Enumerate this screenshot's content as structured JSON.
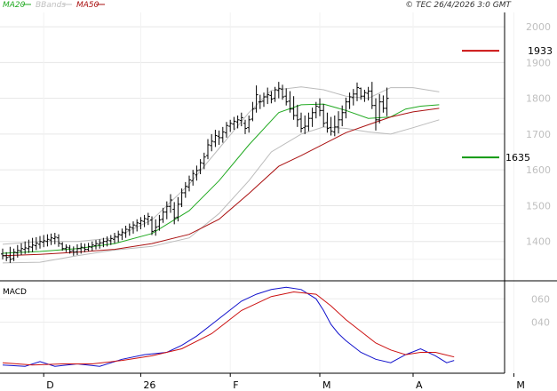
{
  "header": {
    "legend": [
      {
        "name": "MA20",
        "color": "#22aa22"
      },
      {
        "name": "BBands",
        "color": "#c0c0c0"
      },
      {
        "name": "MA50",
        "color": "#aa1111"
      }
    ],
    "copyright": "© TEC 26/4/2026 3:0 GMT"
  },
  "chart_data": [
    {
      "type": "line",
      "title": "",
      "ylim": [
        1290,
        2040
      ],
      "y_ticks": [
        "2000",
        "1900",
        "1800",
        "1700",
        "1600",
        "1500",
        "1400"
      ],
      "y_tick_values": [
        2000,
        1900,
        1800,
        1700,
        1600,
        1500,
        1400
      ],
      "x_ticks": [
        "D",
        "26",
        "F",
        "M",
        "A",
        "M"
      ],
      "x_tick_index": [
        11,
        37,
        61,
        85,
        110,
        137
      ],
      "grid": true,
      "levels": [
        {
          "label": "1933",
          "value": 1933,
          "color": "#cc1111"
        },
        {
          "label": "1635",
          "value": 1635,
          "color": "#119911"
        }
      ],
      "ohlc": [
        [
          1380,
          1365,
          1350,
          1360
        ],
        [
          1370,
          1360,
          1345,
          1355
        ],
        [
          1385,
          1357,
          1340,
          1350
        ],
        [
          1380,
          1352,
          1345,
          1370
        ],
        [
          1390,
          1368,
          1355,
          1375
        ],
        [
          1395,
          1374,
          1362,
          1380
        ],
        [
          1400,
          1378,
          1365,
          1382
        ],
        [
          1405,
          1380,
          1368,
          1385
        ],
        [
          1410,
          1384,
          1370,
          1390
        ],
        [
          1412,
          1388,
          1376,
          1395
        ],
        [
          1415,
          1392,
          1380,
          1400
        ],
        [
          1418,
          1398,
          1384,
          1402
        ],
        [
          1420,
          1400,
          1386,
          1406
        ],
        [
          1422,
          1404,
          1390,
          1410
        ],
        [
          1424,
          1408,
          1392,
          1412
        ],
        [
          1420,
          1410,
          1385,
          1395
        ],
        [
          1398,
          1393,
          1374,
          1380
        ],
        [
          1392,
          1380,
          1370,
          1384
        ],
        [
          1390,
          1382,
          1366,
          1372
        ],
        [
          1386,
          1374,
          1360,
          1370
        ],
        [
          1392,
          1371,
          1362,
          1380
        ],
        [
          1396,
          1380,
          1366,
          1384
        ],
        [
          1394,
          1382,
          1370,
          1378
        ],
        [
          1396,
          1378,
          1372,
          1386
        ],
        [
          1400,
          1384,
          1374,
          1390
        ],
        [
          1404,
          1388,
          1378,
          1394
        ],
        [
          1406,
          1392,
          1380,
          1396
        ],
        [
          1410,
          1396,
          1384,
          1400
        ],
        [
          1414,
          1400,
          1386,
          1404
        ],
        [
          1418,
          1402,
          1390,
          1408
        ],
        [
          1424,
          1406,
          1394,
          1414
        ],
        [
          1430,
          1412,
          1398,
          1420
        ],
        [
          1436,
          1418,
          1404,
          1426
        ],
        [
          1444,
          1424,
          1410,
          1434
        ],
        [
          1450,
          1432,
          1416,
          1440
        ],
        [
          1456,
          1438,
          1422,
          1446
        ],
        [
          1462,
          1444,
          1428,
          1452
        ],
        [
          1468,
          1450,
          1434,
          1458
        ],
        [
          1474,
          1456,
          1440,
          1464
        ],
        [
          1480,
          1462,
          1446,
          1470
        ],
        [
          1470,
          1460,
          1418,
          1428
        ],
        [
          1462,
          1430,
          1416,
          1440
        ],
        [
          1474,
          1442,
          1430,
          1460
        ],
        [
          1494,
          1462,
          1452,
          1482
        ],
        [
          1512,
          1482,
          1462,
          1498
        ],
        [
          1532,
          1498,
          1480,
          1516
        ],
        [
          1510,
          1490,
          1448,
          1466
        ],
        [
          1524,
          1468,
          1456,
          1504
        ],
        [
          1548,
          1504,
          1496,
          1536
        ],
        [
          1566,
          1536,
          1522,
          1554
        ],
        [
          1584,
          1552,
          1540,
          1572
        ],
        [
          1600,
          1570,
          1556,
          1590
        ],
        [
          1612,
          1586,
          1570,
          1598
        ],
        [
          1630,
          1600,
          1588,
          1620
        ],
        [
          1648,
          1618,
          1602,
          1636
        ],
        [
          1686,
          1640,
          1630,
          1670
        ],
        [
          1700,
          1668,
          1652,
          1680
        ],
        [
          1712,
          1678,
          1664,
          1696
        ],
        [
          1710,
          1694,
          1670,
          1690
        ],
        [
          1720,
          1690,
          1676,
          1706
        ],
        [
          1734,
          1704,
          1690,
          1724
        ],
        [
          1740,
          1722,
          1706,
          1730
        ],
        [
          1748,
          1728,
          1712,
          1736
        ],
        [
          1752,
          1734,
          1716,
          1740
        ],
        [
          1760,
          1738,
          1722,
          1746
        ],
        [
          1740,
          1730,
          1700,
          1716
        ],
        [
          1752,
          1718,
          1704,
          1740
        ],
        [
          1790,
          1742,
          1736,
          1770
        ],
        [
          1836,
          1772,
          1760,
          1810
        ],
        [
          1810,
          1790,
          1770,
          1790
        ],
        [
          1816,
          1792,
          1776,
          1804
        ],
        [
          1830,
          1804,
          1784,
          1810
        ],
        [
          1820,
          1808,
          1786,
          1798
        ],
        [
          1832,
          1800,
          1790,
          1824
        ],
        [
          1846,
          1822,
          1800,
          1828
        ],
        [
          1838,
          1826,
          1796,
          1804
        ],
        [
          1828,
          1806,
          1780,
          1790
        ],
        [
          1820,
          1792,
          1760,
          1770
        ],
        [
          1806,
          1770,
          1740,
          1752
        ],
        [
          1782,
          1752,
          1720,
          1740
        ],
        [
          1760,
          1742,
          1704,
          1716
        ],
        [
          1752,
          1718,
          1700,
          1722
        ],
        [
          1760,
          1722,
          1708,
          1744
        ],
        [
          1774,
          1744,
          1720,
          1760
        ],
        [
          1790,
          1760,
          1744,
          1778
        ],
        [
          1800,
          1776,
          1750,
          1766
        ],
        [
          1784,
          1766,
          1720,
          1730
        ],
        [
          1760,
          1732,
          1704,
          1716
        ],
        [
          1748,
          1718,
          1696,
          1708
        ],
        [
          1752,
          1706,
          1694,
          1720
        ],
        [
          1764,
          1720,
          1702,
          1740
        ],
        [
          1780,
          1740,
          1722,
          1760
        ],
        [
          1802,
          1760,
          1744,
          1790
        ],
        [
          1816,
          1790,
          1770,
          1804
        ],
        [
          1826,
          1802,
          1780,
          1812
        ],
        [
          1844,
          1812,
          1792,
          1830
        ],
        [
          1830,
          1828,
          1796,
          1806
        ],
        [
          1824,
          1806,
          1790,
          1816
        ],
        [
          1832,
          1814,
          1794,
          1820
        ],
        [
          1846,
          1820,
          1770,
          1780
        ],
        [
          1800,
          1780,
          1710,
          1740
        ],
        [
          1812,
          1740,
          1730,
          1790
        ],
        [
          1808,
          1790,
          1760,
          1772
        ],
        [
          1830,
          1772,
          1750,
          1800
        ]
      ],
      "series": [
        {
          "name": "MA20",
          "color": "#22aa22",
          "points": [
            [
              0,
              1367
            ],
            [
              10,
              1372
            ],
            [
              20,
              1380
            ],
            [
              30,
              1394
            ],
            [
              40,
              1422
            ],
            [
              50,
              1486
            ],
            [
              58,
              1570
            ],
            [
              66,
              1670
            ],
            [
              74,
              1760
            ],
            [
              80,
              1782
            ],
            [
              86,
              1784
            ],
            [
              92,
              1766
            ],
            [
              98,
              1744
            ],
            [
              104,
              1748
            ],
            [
              108,
              1770
            ],
            [
              112,
              1778
            ],
            [
              117,
              1782
            ]
          ]
        },
        {
          "name": "BBands",
          "color": "#bbbbbb",
          "points": [
            [
              0,
              1392
            ],
            [
              10,
              1400
            ],
            [
              20,
              1400
            ],
            [
              30,
              1410
            ],
            [
              40,
              1460
            ],
            [
              50,
              1560
            ],
            [
              58,
              1660
            ],
            [
              66,
              1760
            ],
            [
              72,
              1822
            ],
            [
              80,
              1832
            ],
            [
              86,
              1824
            ],
            [
              92,
              1806
            ],
            [
              98,
              1800
            ],
            [
              104,
              1830
            ],
            [
              110,
              1830
            ],
            [
              117,
              1818
            ]
          ]
        },
        {
          "name": "BBands",
          "color": "#bbbbbb",
          "points": [
            [
              0,
              1340
            ],
            [
              10,
              1342
            ],
            [
              20,
              1360
            ],
            [
              30,
              1376
            ],
            [
              40,
              1386
            ],
            [
              50,
              1410
            ],
            [
              58,
              1478
            ],
            [
              66,
              1570
            ],
            [
              72,
              1650
            ],
            [
              80,
              1700
            ],
            [
              86,
              1720
            ],
            [
              92,
              1716
            ],
            [
              98,
              1706
            ],
            [
              104,
              1700
            ],
            [
              110,
              1718
            ],
            [
              117,
              1740
            ]
          ]
        },
        {
          "name": "MA50",
          "color": "#aa1111",
          "points": [
            [
              0,
              1360
            ],
            [
              10,
              1364
            ],
            [
              20,
              1370
            ],
            [
              30,
              1378
            ],
            [
              40,
              1394
            ],
            [
              50,
              1420
            ],
            [
              58,
              1462
            ],
            [
              66,
              1534
            ],
            [
              74,
              1610
            ],
            [
              80,
              1640
            ],
            [
              86,
              1672
            ],
            [
              92,
              1704
            ],
            [
              98,
              1726
            ],
            [
              104,
              1748
            ],
            [
              110,
              1762
            ],
            [
              117,
              1772
            ]
          ]
        }
      ]
    },
    {
      "type": "line",
      "title": "MACD",
      "ylim": [
        -4,
        74
      ],
      "y_ticks": [
        "060",
        "040"
      ],
      "y_tick_values": [
        60,
        40
      ],
      "grid": true,
      "series": [
        {
          "name": "",
          "color": "#1111cc",
          "points": [
            [
              0,
              3
            ],
            [
              6,
              2
            ],
            [
              10,
              6
            ],
            [
              14,
              2
            ],
            [
              20,
              4
            ],
            [
              26,
              2
            ],
            [
              32,
              8
            ],
            [
              38,
              12
            ],
            [
              44,
              14
            ],
            [
              48,
              20
            ],
            [
              52,
              28
            ],
            [
              56,
              38
            ],
            [
              60,
              48
            ],
            [
              64,
              58
            ],
            [
              68,
              64
            ],
            [
              72,
              68
            ],
            [
              76,
              70
            ],
            [
              80,
              68
            ],
            [
              84,
              60
            ],
            [
              86,
              50
            ],
            [
              88,
              38
            ],
            [
              90,
              30
            ],
            [
              92,
              24
            ],
            [
              96,
              14
            ],
            [
              100,
              8
            ],
            [
              104,
              5
            ],
            [
              108,
              12
            ],
            [
              112,
              17
            ],
            [
              116,
              11
            ],
            [
              119,
              5
            ],
            [
              121,
              7
            ]
          ]
        },
        {
          "name": "",
          "color": "#cc1111",
          "points": [
            [
              0,
              5
            ],
            [
              8,
              3
            ],
            [
              16,
              4
            ],
            [
              24,
              4
            ],
            [
              32,
              7
            ],
            [
              40,
              11
            ],
            [
              48,
              17
            ],
            [
              56,
              30
            ],
            [
              64,
              50
            ],
            [
              72,
              62
            ],
            [
              78,
              66
            ],
            [
              84,
              64
            ],
            [
              88,
              54
            ],
            [
              92,
              42
            ],
            [
              96,
              32
            ],
            [
              100,
              22
            ],
            [
              104,
              16
            ],
            [
              108,
              12
            ],
            [
              112,
              14
            ],
            [
              116,
              14
            ],
            [
              121,
              10
            ]
          ]
        }
      ]
    }
  ]
}
